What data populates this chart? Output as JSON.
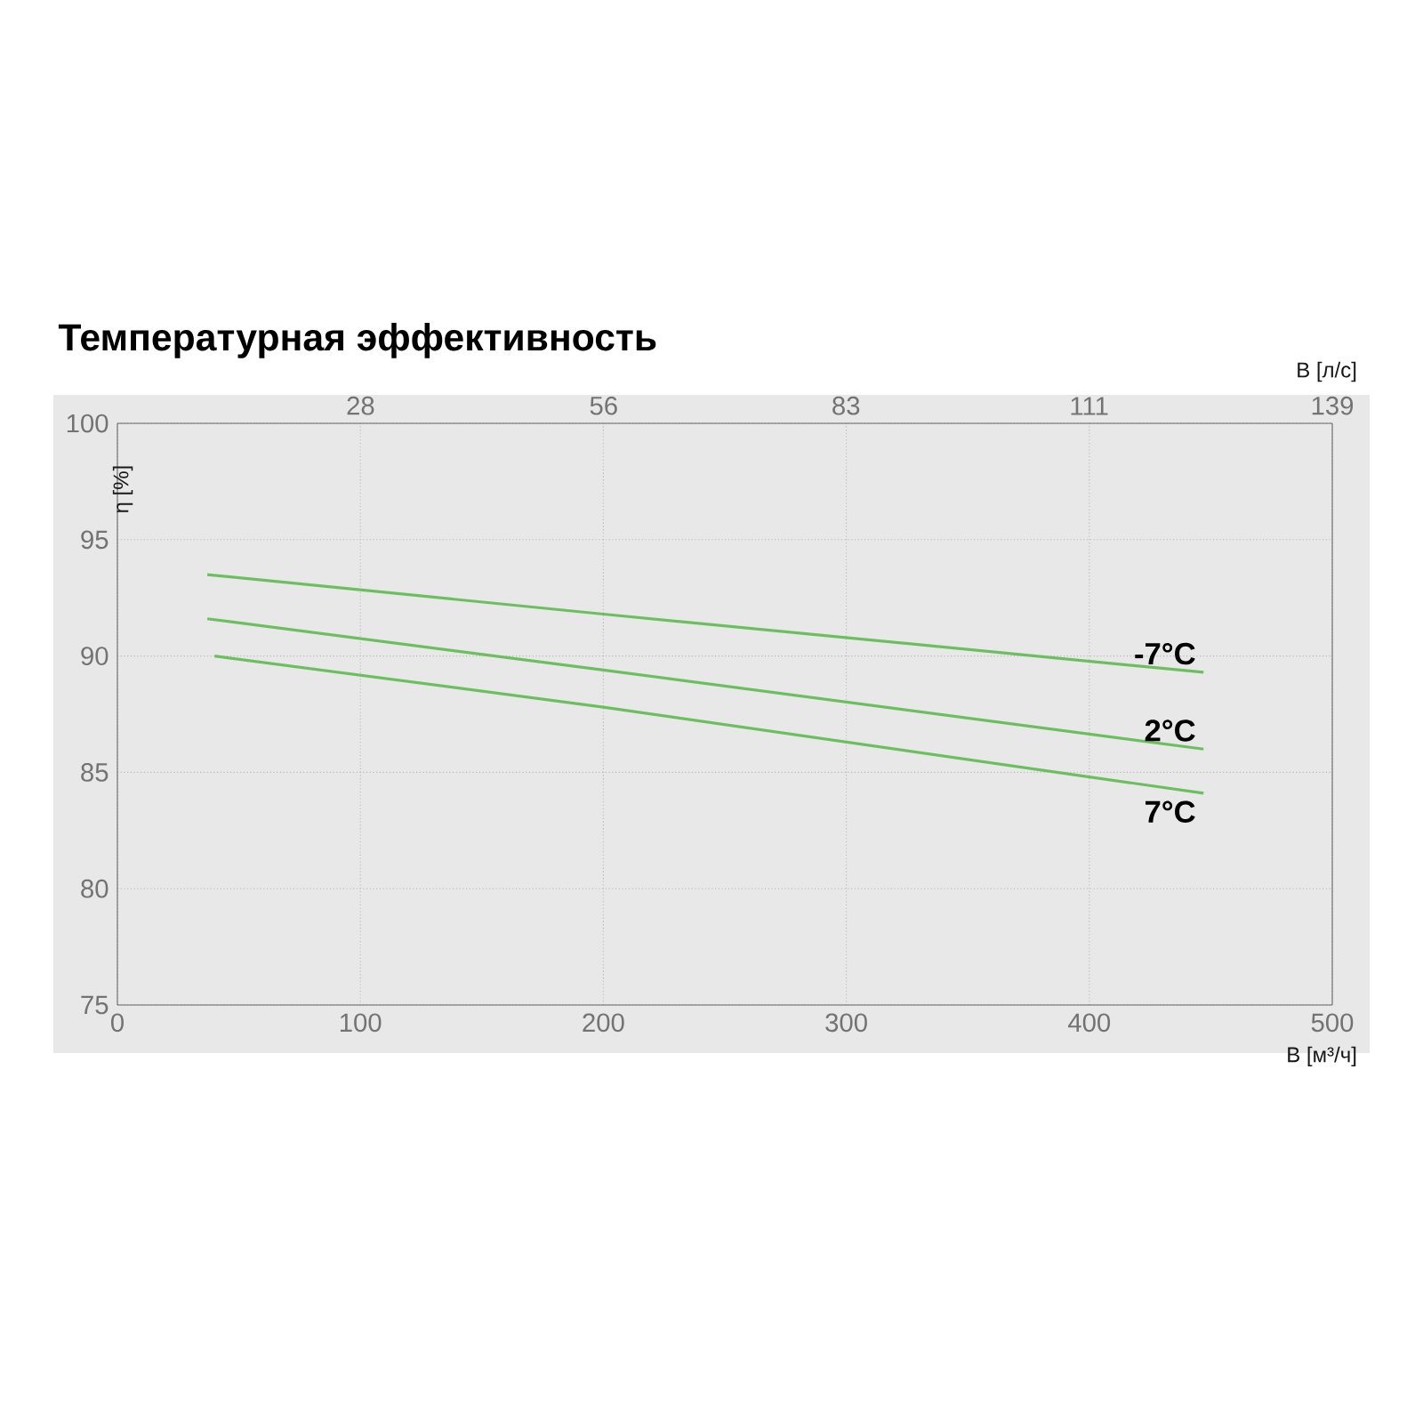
{
  "chart_data": {
    "type": "line",
    "title": "Температурная эффективность",
    "xlabel": "В [м³/ч]",
    "x2label": "В [л/с]",
    "ylabel": "η [%]",
    "xlim": [
      0,
      500
    ],
    "xticks": [
      0,
      100,
      200,
      300,
      400,
      500
    ],
    "x2lim": [
      0,
      138.9
    ],
    "x2ticks": [
      {
        "value": 27.8,
        "label": "28"
      },
      {
        "value": 55.6,
        "label": "56"
      },
      {
        "value": 83.3,
        "label": "83"
      },
      {
        "value": 111.1,
        "label": "111"
      },
      {
        "value": 138.9,
        "label": "139"
      }
    ],
    "ylim": [
      75,
      100
    ],
    "yticks": [
      75,
      80,
      85,
      90,
      95,
      100
    ],
    "grid": true,
    "legend": false,
    "marker": "none",
    "line_style": "solid",
    "series": [
      {
        "name": "-7°C",
        "color": "#6cbf5f",
        "x": [
          37,
          200,
          447
        ],
        "values": [
          93.5,
          91.8,
          89.3
        ]
      },
      {
        "name": "2°C",
        "color": "#6cbf5f",
        "x": [
          37,
          200,
          447
        ],
        "values": [
          91.6,
          89.4,
          86.0
        ]
      },
      {
        "name": "7°C",
        "color": "#6cbf5f",
        "x": [
          40,
          200,
          447
        ],
        "values": [
          90.0,
          87.8,
          84.1
        ]
      }
    ]
  }
}
